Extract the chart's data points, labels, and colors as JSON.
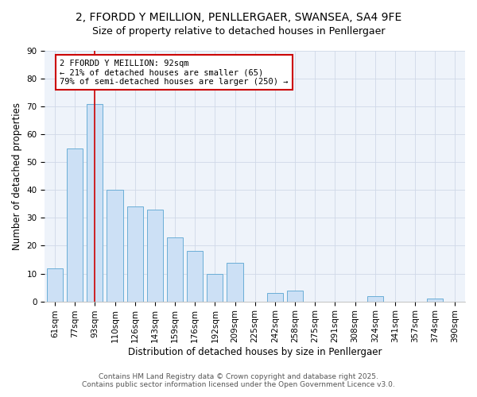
{
  "title": "2, FFORDD Y MEILLION, PENLLERGAER, SWANSEA, SA4 9FE",
  "subtitle": "Size of property relative to detached houses in Penllergaer",
  "xlabel": "Distribution of detached houses by size in Penllergaer",
  "ylabel": "Number of detached properties",
  "categories": [
    "61sqm",
    "77sqm",
    "93sqm",
    "110sqm",
    "126sqm",
    "143sqm",
    "159sqm",
    "176sqm",
    "192sqm",
    "209sqm",
    "225sqm",
    "242sqm",
    "258sqm",
    "275sqm",
    "291sqm",
    "308sqm",
    "324sqm",
    "341sqm",
    "357sqm",
    "374sqm",
    "390sqm"
  ],
  "values": [
    12,
    55,
    71,
    40,
    34,
    33,
    23,
    18,
    10,
    14,
    0,
    3,
    4,
    0,
    0,
    0,
    2,
    0,
    0,
    1,
    0
  ],
  "bar_color": "#cce0f5",
  "bar_edge_color": "#6aaed6",
  "vline_x": 2,
  "vline_color": "#cc0000",
  "annotation_text": "2 FFORDD Y MEILLION: 92sqm\n← 21% of detached houses are smaller (65)\n79% of semi-detached houses are larger (250) →",
  "annotation_box_color": "#ffffff",
  "annotation_box_edge": "#cc0000",
  "ylim": [
    0,
    90
  ],
  "yticks": [
    0,
    10,
    20,
    30,
    40,
    50,
    60,
    70,
    80,
    90
  ],
  "footer_line1": "Contains HM Land Registry data © Crown copyright and database right 2025.",
  "footer_line2": "Contains public sector information licensed under the Open Government Licence v3.0.",
  "bg_color": "#ffffff",
  "plot_bg_color": "#eef3fa",
  "title_fontsize": 10,
  "subtitle_fontsize": 9,
  "axis_label_fontsize": 8.5,
  "tick_fontsize": 7.5,
  "annotation_fontsize": 7.5,
  "footer_fontsize": 6.5
}
